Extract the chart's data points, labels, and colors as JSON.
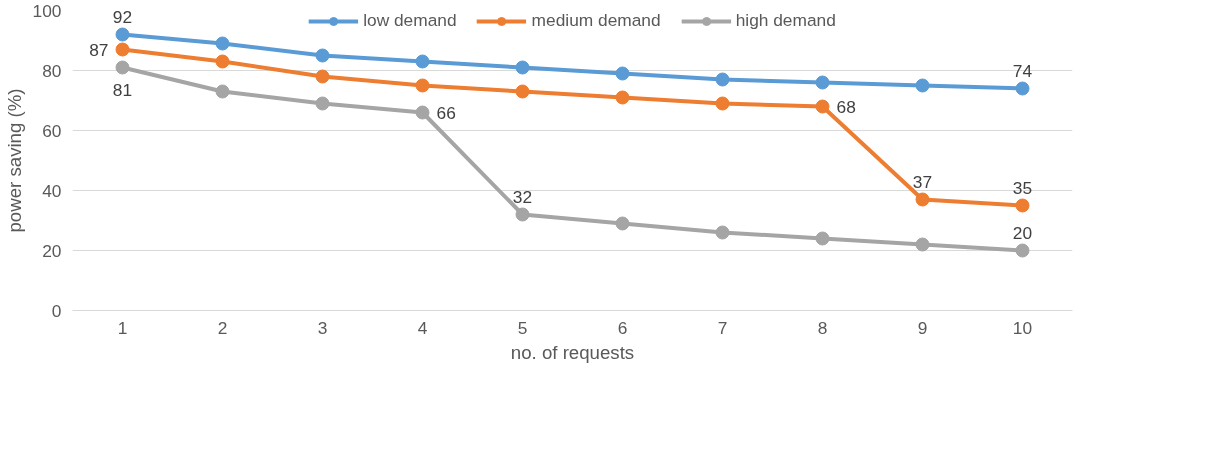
{
  "chart_data": {
    "type": "line",
    "xlabel": "no. of requests",
    "ylabel": "power saving (%)",
    "categories": [
      "1",
      "2",
      "3",
      "4",
      "5",
      "6",
      "7",
      "8",
      "9",
      "10"
    ],
    "ylim": [
      0,
      100
    ],
    "yticks": [
      0,
      20,
      40,
      60,
      80,
      100
    ],
    "grid": "y",
    "legend": "top",
    "marker": "circle",
    "line_style": "solid",
    "series": [
      {
        "name": "low demand",
        "color": "#5b9bd5",
        "values": [
          92,
          89,
          85,
          83,
          81,
          79,
          77,
          76,
          75,
          74
        ],
        "value_labels": [
          "92",
          null,
          null,
          null,
          null,
          null,
          null,
          null,
          null,
          "74"
        ]
      },
      {
        "name": "medium demand",
        "color": "#ed7d31",
        "values": [
          87,
          83,
          78,
          75,
          73,
          71,
          69,
          68,
          37,
          35
        ],
        "value_labels": [
          "87",
          null,
          null,
          null,
          null,
          null,
          null,
          "68",
          "37",
          "35"
        ]
      },
      {
        "name": "high demand",
        "color": "#a5a5a5",
        "values": [
          81,
          73,
          69,
          66,
          32,
          29,
          26,
          24,
          22,
          20
        ],
        "value_labels": [
          "81",
          null,
          null,
          "66",
          "32",
          null,
          null,
          null,
          null,
          "20"
        ]
      }
    ]
  }
}
